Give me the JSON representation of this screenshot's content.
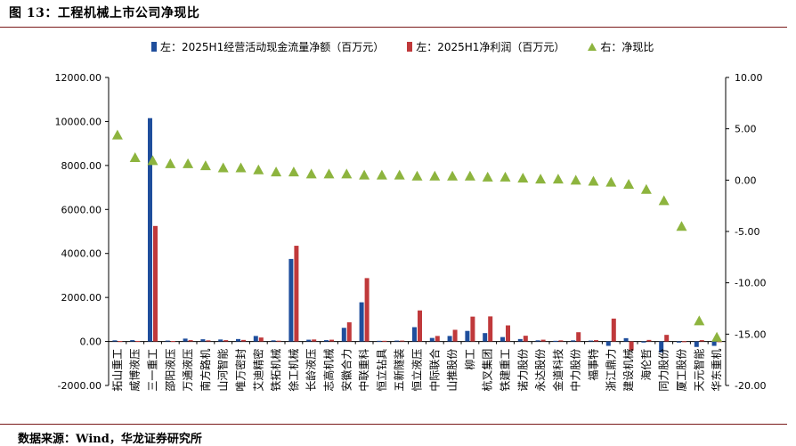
{
  "figure_title": "图 13：工程机械上市公司净现比",
  "source_note": "数据来源：Wind，华龙证券研究所",
  "colors": {
    "cashflow": "#1f4e9c",
    "netprofit": "#c0393b",
    "ratio": "#8db43e",
    "rule": "#7a1a1a"
  },
  "legend": {
    "cashflow": "左：2025H1经营活动现金流量净额（百万元）",
    "netprofit": "左：2025H1净利润（百万元）",
    "ratio": "右：净现比"
  },
  "chart_data": {
    "type": "bar",
    "categories": [
      "拓山重工",
      "威博液压",
      "三一重工",
      "邵阳液压",
      "万通液压",
      "南方路机",
      "山河智能",
      "唯万密封",
      "艾迪精密",
      "铁拓机械",
      "徐工机械",
      "长龄液压",
      "志高机械",
      "安徽合力",
      "中联重科",
      "恒立钻具",
      "五新隧装",
      "恒立液压",
      "中际联合",
      "山推股份",
      "柳工",
      "杭叉集团",
      "铁建重工",
      "诺力股份",
      "永达股份",
      "金道科技",
      "中力股份",
      "福事特",
      "浙江鼎力",
      "建设机械",
      "海伦哲",
      "同力股份",
      "厦工股份",
      "天元智能",
      "华东重机"
    ],
    "series": [
      {
        "name": "左：2025H1经营活动现金流量净额（百万元）",
        "axis": "left",
        "values": [
          50,
          60,
          10150,
          40,
          130,
          100,
          90,
          110,
          250,
          50,
          3750,
          80,
          60,
          620,
          1780,
          30,
          40,
          650,
          160,
          250,
          480,
          380,
          200,
          110,
          50,
          30,
          50,
          40,
          -200,
          150,
          -50,
          -500,
          -50,
          -250,
          -200
        ]
      },
      {
        "name": "左：2025H1净利润（百万元）",
        "axis": "left",
        "values": [
          20,
          25,
          5250,
          20,
          60,
          50,
          60,
          70,
          180,
          35,
          4350,
          90,
          80,
          870,
          2880,
          30,
          40,
          1410,
          250,
          530,
          1130,
          1140,
          730,
          260,
          80,
          50,
          420,
          60,
          1040,
          -400,
          70,
          300,
          10,
          60,
          10
        ]
      },
      {
        "name": "右：净现比",
        "axis": "right",
        "values": [
          4.4,
          2.2,
          1.9,
          1.6,
          1.6,
          1.4,
          1.2,
          1.2,
          1.0,
          0.8,
          0.8,
          0.6,
          0.6,
          0.6,
          0.5,
          0.5,
          0.5,
          0.4,
          0.4,
          0.4,
          0.4,
          0.3,
          0.3,
          0.2,
          0.1,
          0.1,
          0.0,
          -0.1,
          -0.2,
          -0.4,
          -0.9,
          -2.0,
          -4.5,
          -13.7,
          -15.3
        ]
      }
    ],
    "ylim_left": [
      -2000,
      12000
    ],
    "ylim_right": [
      -20,
      10
    ],
    "yticks_left": [
      "-2000.00",
      "0.00",
      "2000.00",
      "4000.00",
      "6000.00",
      "8000.00",
      "10000.00",
      "12000.00"
    ],
    "yticks_right": [
      "-20.00",
      "-15.00",
      "-10.00",
      "-5.00",
      "0.00",
      "5.00",
      "10.00"
    ],
    "legend_position": "top",
    "grid": false
  }
}
